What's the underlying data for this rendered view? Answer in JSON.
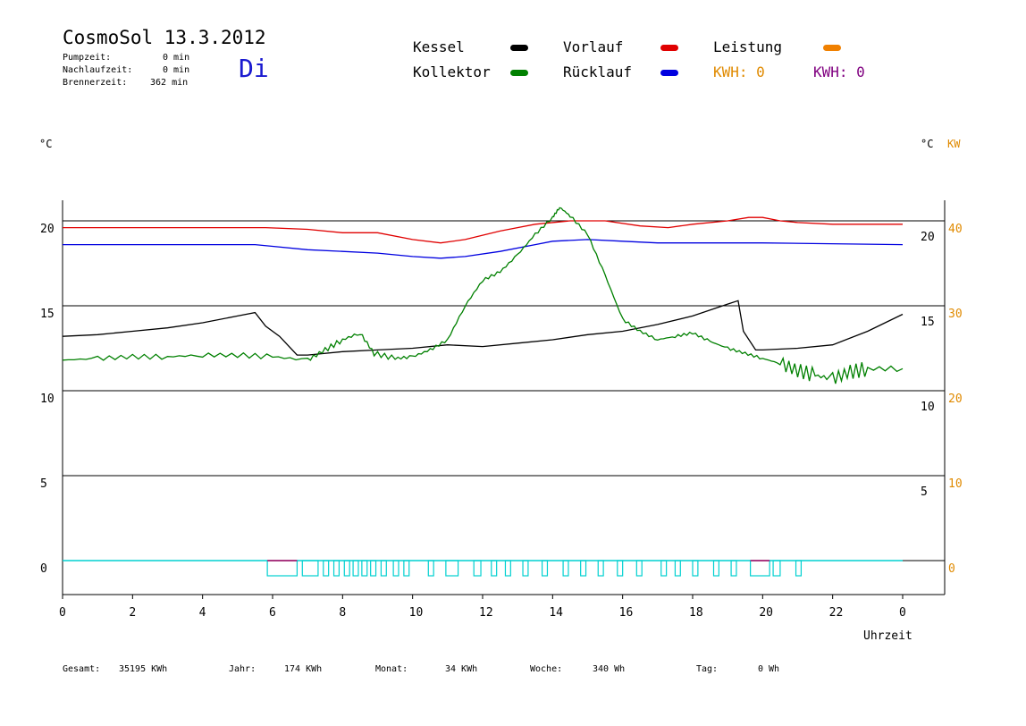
{
  "header": {
    "title": "CosmoSol 13.3.2012",
    "day": "Di",
    "pump_label": "Pumpzeit:",
    "pump_value": "0 min",
    "nachlauf_label": "Nachlaufzeit:",
    "nachlauf_value": "0 min",
    "brenner_label": "Brennerzeit:",
    "brenner_value": "362 min"
  },
  "legend": {
    "kessel": "Kessel",
    "kollektor": "Kollektor",
    "vorlauf": "Vorlauf",
    "ruecklauf": "Rücklauf",
    "leistung": "Leistung",
    "kwh1": "KWH: 0",
    "kwh2": "KWH: 0"
  },
  "footer": {
    "gesamt_label": "Gesamt:",
    "gesamt_value": "35195 KWh",
    "jahr_label": "Jahr:",
    "jahr_value": "174 KWh",
    "monat_label": "Monat:",
    "monat_value": "34 KWh",
    "woche_label": "Woche:",
    "woche_value": "340 Wh",
    "tag_label": "Tag:",
    "tag_value": "0 Wh"
  },
  "colors": {
    "kessel": "#000000",
    "kollektor": "#008000",
    "vorlauf": "#e00000",
    "ruecklauf": "#0000e0",
    "leistung": "#f08000",
    "kwh2": "#800080",
    "pump": "#00d0d0"
  },
  "chart_data": {
    "type": "line",
    "xlabel": "Uhrzeit",
    "ylabel_left": "°C",
    "ylabel_right": "°C",
    "ylabel_right2": "KW",
    "x_ticks": [
      "0",
      "2",
      "4",
      "6",
      "8",
      "10",
      "12",
      "14",
      "16",
      "18",
      "20",
      "22",
      "0"
    ],
    "y_left_ticks": [
      "20",
      "15",
      "10",
      "5",
      "0"
    ],
    "y_right_ticks": [
      "20",
      "15",
      "10",
      "5"
    ],
    "y_kw_ticks": [
      "40",
      "30",
      "20",
      "10",
      "0"
    ],
    "xlim": [
      0,
      24
    ],
    "ylim": [
      -2,
      22
    ],
    "series": [
      {
        "name": "Vorlauf",
        "color": "#e00000",
        "x": [
          0,
          5.8,
          7,
          8,
          9,
          10,
          10.8,
          11.5,
          12.5,
          13.5,
          14.5,
          15.5,
          16.5,
          17.3,
          18,
          19,
          19.6,
          20,
          20.5,
          21,
          22,
          24
        ],
        "y": [
          19.6,
          19.6,
          19.5,
          19.3,
          19.3,
          18.9,
          18.7,
          18.9,
          19.4,
          19.8,
          20.0,
          20.0,
          19.7,
          19.6,
          19.8,
          20.0,
          20.2,
          20.2,
          20.0,
          19.9,
          19.8,
          19.8
        ]
      },
      {
        "name": "Rücklauf",
        "color": "#0000e0",
        "x": [
          0,
          5.5,
          6,
          7,
          8,
          9,
          10,
          10.8,
          11.5,
          12.5,
          13.5,
          14,
          15,
          16,
          17,
          18,
          19,
          20,
          24
        ],
        "y": [
          18.6,
          18.6,
          18.5,
          18.3,
          18.2,
          18.1,
          17.9,
          17.8,
          17.9,
          18.2,
          18.6,
          18.8,
          18.9,
          18.8,
          18.7,
          18.7,
          18.7,
          18.7,
          18.6
        ],
        "x_extra": []
      },
      {
        "name": "Kessel",
        "color": "#000000",
        "x": [
          0,
          1,
          2,
          3,
          4,
          5,
          5.5,
          5.8,
          6.2,
          6.7,
          7,
          8,
          9,
          10,
          11,
          12,
          13,
          14,
          15,
          16,
          17,
          18,
          19,
          19.3,
          19.45,
          19.8,
          20,
          21,
          22,
          23,
          24
        ],
        "y": [
          13.2,
          13.3,
          13.5,
          13.7,
          14.0,
          14.4,
          14.6,
          13.8,
          13.2,
          12.1,
          12.1,
          12.3,
          12.4,
          12.5,
          12.7,
          12.6,
          12.8,
          13.0,
          13.3,
          13.5,
          13.9,
          14.4,
          15.1,
          15.3,
          13.5,
          12.4,
          12.4,
          12.5,
          12.7,
          13.5,
          14.5
        ]
      },
      {
        "name": "Kollektor",
        "color": "#008000",
        "x": [
          0,
          1,
          2,
          3,
          4,
          5,
          6,
          7,
          7.5,
          8,
          8.5,
          8.9,
          9.5,
          10,
          10.5,
          11,
          11.5,
          12,
          12.5,
          13,
          13.5,
          14,
          14.2,
          14.5,
          15,
          15.5,
          16,
          16.5,
          17,
          17.5,
          18,
          18.5,
          19,
          19.5,
          20,
          20.5,
          21,
          21.5,
          22,
          22.5,
          23,
          24
        ],
        "y": [
          11.8,
          11.9,
          12.0,
          12.0,
          12.1,
          12.1,
          12.0,
          11.8,
          12.4,
          13.0,
          13.4,
          12.2,
          11.9,
          12.0,
          12.4,
          13.0,
          15.0,
          16.5,
          17.0,
          18.0,
          19.2,
          20.2,
          20.8,
          20.3,
          19.2,
          16.8,
          14.2,
          13.5,
          13.0,
          13.2,
          13.4,
          12.9,
          12.5,
          12.2,
          11.9,
          11.6,
          11.2,
          10.9,
          10.7,
          11.1,
          11.3,
          11.3
        ]
      },
      {
        "name": "Pumpe",
        "color": "#00d0d0",
        "x": [],
        "y": []
      }
    ],
    "grid": true
  }
}
